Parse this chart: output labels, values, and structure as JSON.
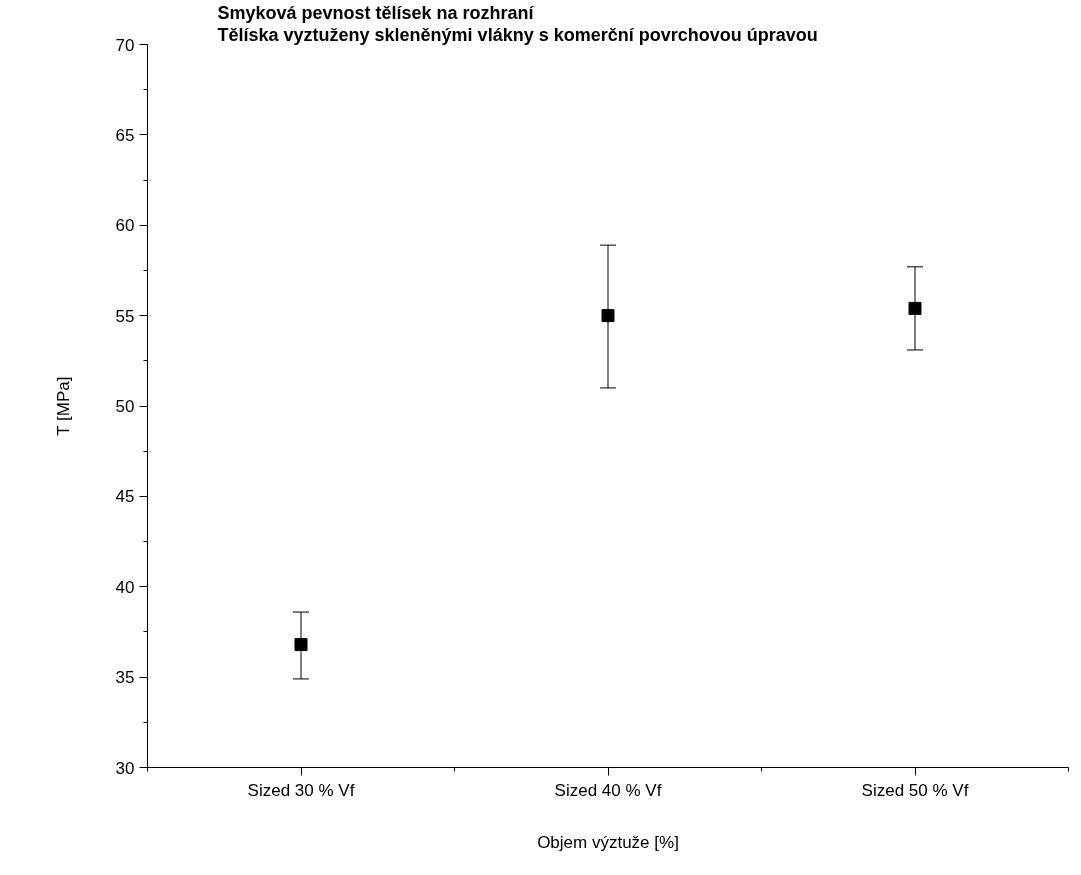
{
  "chart_data": {
    "type": "scatter",
    "title": "Smyková pevnost tělísek na rozhraní",
    "subtitle": "Tělíska vyztuženy skleněnými vlákny s komerční povrchovou úpravou",
    "xlabel": "Objem výztuže [%]",
    "ylabel": "T [MPa]",
    "categories": [
      "Sized 30 % Vf",
      "Sized 40 % Vf",
      "Sized 50 % Vf"
    ],
    "series": [
      {
        "color": "#000000",
        "values": [
          36.8,
          55.0,
          55.4
        ],
        "errors": [
          [
            34.9,
            38.6
          ],
          [
            51.0,
            58.9
          ],
          [
            53.1,
            57.7
          ]
        ]
      }
    ],
    "ylim": [
      30,
      70
    ],
    "yticks": [
      30,
      35,
      40,
      45,
      50,
      55,
      60,
      65,
      70
    ],
    "marker": "square",
    "grid": false
  }
}
